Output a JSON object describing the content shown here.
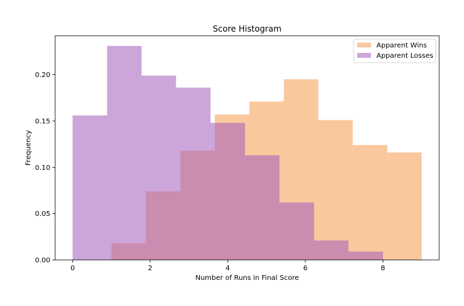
{
  "chart_data": {
    "type": "bar",
    "title": "Score Histogram",
    "xlabel": "Number of Runs in Final Score",
    "ylabel": "Frequency",
    "xlim": [
      -0.45,
      9.45
    ],
    "ylim": [
      0,
      0.242
    ],
    "xticks": [
      0,
      2,
      4,
      6,
      8
    ],
    "xtick_labels": [
      "0",
      "2",
      "4",
      "6",
      "8"
    ],
    "yticks": [
      0.0,
      0.05,
      0.1,
      0.15,
      0.2
    ],
    "ytick_labels": [
      "0.00",
      "0.05",
      "0.10",
      "0.15",
      "0.20"
    ],
    "grid": false,
    "legend_position": "top-right",
    "series": [
      {
        "name": "Apparent Wins",
        "color": "#f7a35c",
        "opacity": 0.6,
        "bin_edges": [
          1.0,
          1.889,
          2.778,
          3.667,
          4.556,
          5.444,
          6.333,
          7.222,
          8.111,
          9.0
        ],
        "values": [
          0.018,
          0.074,
          0.118,
          0.157,
          0.171,
          0.195,
          0.151,
          0.124,
          0.116
        ]
      },
      {
        "name": "Apparent Losses",
        "color": "#a25bbd",
        "opacity": 0.55,
        "bin_edges": [
          0.0,
          0.889,
          1.778,
          2.667,
          3.556,
          4.444,
          5.333,
          6.222,
          7.111,
          8.0
        ],
        "values": [
          0.156,
          0.231,
          0.199,
          0.186,
          0.148,
          0.113,
          0.062,
          0.021,
          0.009
        ]
      }
    ]
  }
}
